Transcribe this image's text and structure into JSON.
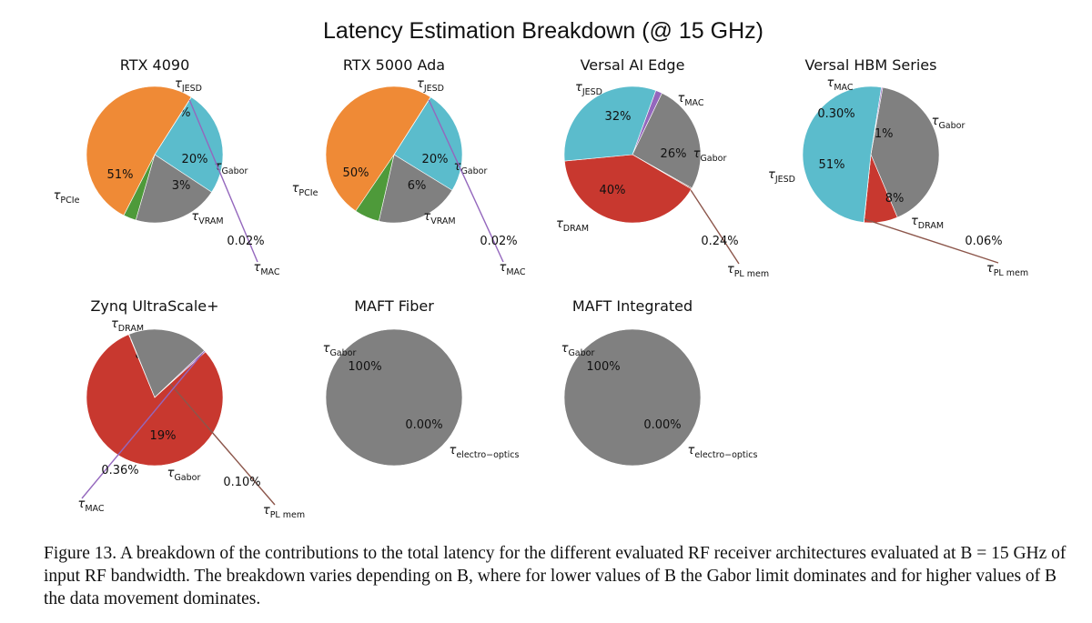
{
  "figure_title": "Latency Estimation Breakdown (@ 15 GHz)",
  "caption": "Figure 13. A breakdown of the contributions to the total latency for the different evaluated RF receiver architectures evaluated at B = 15 GHz of input RF bandwidth. The breakdown varies depending on B, where for lower values of B the Gabor limit dominates and for higher values of B the data movement dominates.",
  "colors": {
    "JESD": "#5bbccc",
    "MAC": "#9467bd",
    "Gabor": "#808080",
    "PL mem": "#8c564b",
    "VRAM": "#4e9a3a",
    "PCIe": "#ef8a36",
    "DRAM": "#c8382f",
    "electro-optics": "#808080"
  },
  "chart_data": [
    {
      "type": "pie",
      "title": "RTX 4090",
      "slices": [
        {
          "component": "JESD",
          "value": 25,
          "label": "25%"
        },
        {
          "component": "Gabor",
          "value": 20,
          "label": "20%"
        },
        {
          "component": "VRAM",
          "value": 3,
          "label": "3%"
        },
        {
          "component": "PCIe",
          "value": 51,
          "label": "51%"
        },
        {
          "component": "MAC",
          "value": 0.02,
          "label": "0.02%"
        }
      ]
    },
    {
      "type": "pie",
      "title": "RTX 5000 Ada",
      "slices": [
        {
          "component": "JESD",
          "value": 25,
          "label": "25%"
        },
        {
          "component": "Gabor",
          "value": 20,
          "label": "20%"
        },
        {
          "component": "VRAM",
          "value": 6,
          "label": "6%"
        },
        {
          "component": "PCIe",
          "value": 50,
          "label": "50%"
        },
        {
          "component": "MAC",
          "value": 0.02,
          "label": "0.02%"
        }
      ]
    },
    {
      "type": "pie",
      "title": "Versal AI Edge",
      "slices": [
        {
          "component": "MAC",
          "value": 1.57,
          "label": "1.57%"
        },
        {
          "component": "Gabor",
          "value": 26,
          "label": "26%"
        },
        {
          "component": "PL mem",
          "value": 0.24,
          "label": "0.24%"
        },
        {
          "component": "DRAM",
          "value": 40,
          "label": "40%"
        },
        {
          "component": "JESD",
          "value": 32,
          "label": "32%"
        }
      ]
    },
    {
      "type": "pie",
      "title": "Versal HBM Series",
      "slices": [
        {
          "component": "Gabor",
          "value": 41,
          "label": "41%"
        },
        {
          "component": "DRAM",
          "value": 8,
          "label": "8%"
        },
        {
          "component": "PL mem",
          "value": 0.06,
          "label": "0.06%"
        },
        {
          "component": "JESD",
          "value": 51,
          "label": "51%"
        },
        {
          "component": "MAC",
          "value": 0.3,
          "label": "0.30%"
        }
      ]
    },
    {
      "type": "pie",
      "title": "Zynq UltraScale+",
      "slices": [
        {
          "component": "DRAM",
          "value": 80,
          "label": "80%"
        },
        {
          "component": "PL mem",
          "value": 0.1,
          "label": "0.10%"
        },
        {
          "component": "Gabor",
          "value": 19,
          "label": "19%"
        },
        {
          "component": "MAC",
          "value": 0.36,
          "label": "0.36%"
        }
      ]
    },
    {
      "type": "pie",
      "title": "MAFT Fiber",
      "slices": [
        {
          "component": "Gabor",
          "value": 100,
          "label": "100%"
        },
        {
          "component": "electro-optics",
          "value": 0.0,
          "label": "0.00%"
        }
      ]
    },
    {
      "type": "pie",
      "title": "MAFT Integrated",
      "slices": [
        {
          "component": "Gabor",
          "value": 100,
          "label": "100%"
        },
        {
          "component": "electro-optics",
          "value": 0.0,
          "label": "0.00%"
        }
      ]
    }
  ]
}
